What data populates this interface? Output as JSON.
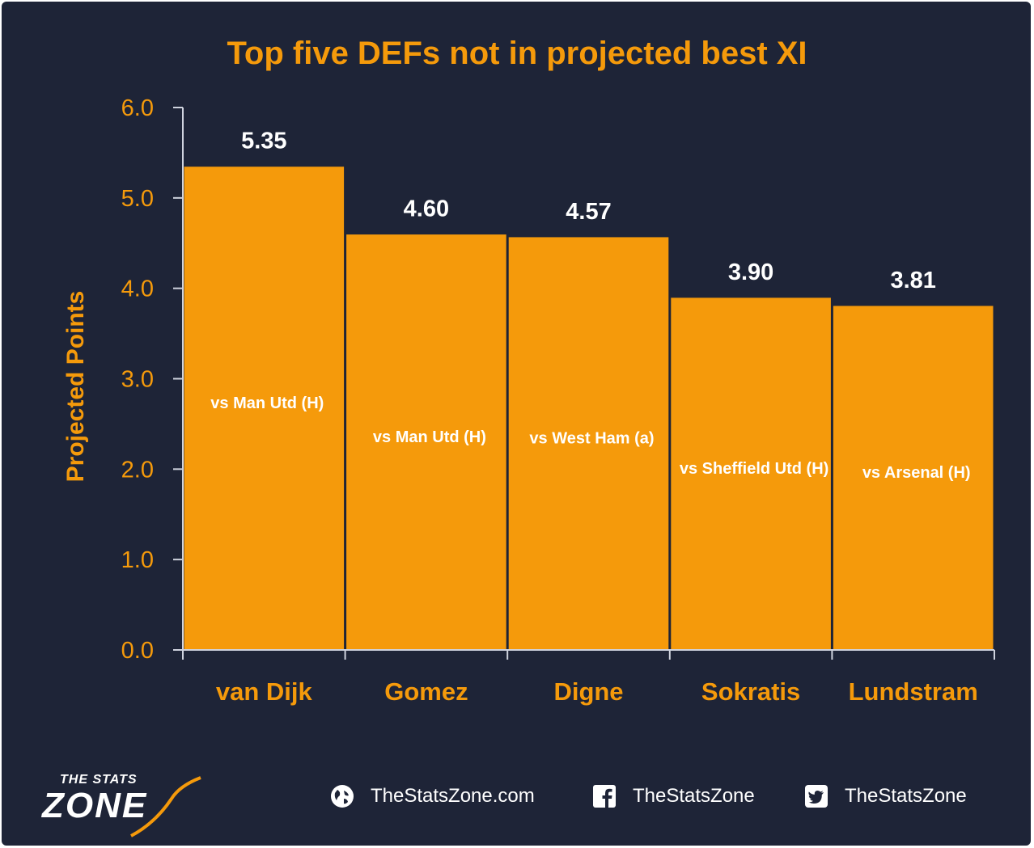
{
  "chart_data": {
    "type": "bar",
    "title": "Top five DEFs not in projected best XI",
    "xlabel": "",
    "ylabel": "Projected Points",
    "ylim": [
      0,
      6
    ],
    "yticks": [
      "0.0",
      "1.0",
      "2.0",
      "3.0",
      "4.0",
      "5.0",
      "6.0"
    ],
    "categories": [
      "van Dijk",
      "Gomez",
      "Digne",
      "Sokratis",
      "Lundstram"
    ],
    "values": [
      5.35,
      4.6,
      4.57,
      3.9,
      3.81
    ],
    "value_labels": [
      "5.35",
      "4.60",
      "4.57",
      "3.90",
      "3.81"
    ],
    "annotations": [
      "vs Man Utd (H)",
      "vs Man Utd (H)",
      "vs West Ham (a)",
      "vs Sheffield Utd (H)",
      "vs Arsenal (H)"
    ],
    "grid": false,
    "legend": "none",
    "colors": {
      "bar": "#f59a0b",
      "background": "#1e2437",
      "text": "#f59a0b",
      "value": "#ffffff"
    }
  },
  "footer": {
    "logo_top": "THE STATS",
    "logo_main": "ZONE",
    "website": "TheStatsZone.com",
    "facebook": "TheStatsZone",
    "twitter": "TheStatsZone",
    "icons": [
      "globe-icon",
      "facebook-icon",
      "twitter-icon"
    ]
  }
}
